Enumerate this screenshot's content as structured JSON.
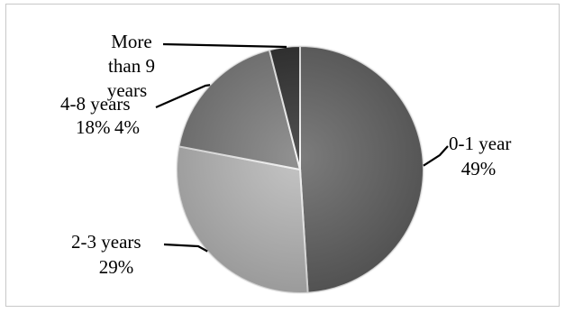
{
  "chart_data": {
    "type": "pie",
    "title": "",
    "slices": [
      {
        "label": "0-1 year",
        "value_text": "49%",
        "value": 49,
        "color": "#5f5f5f"
      },
      {
        "label": "2-3 years",
        "value_text": "29%",
        "value": 29,
        "color": "#b8b8b8"
      },
      {
        "label": "4-8 years",
        "value_text": "18%",
        "value": 18,
        "color": "#7a7a7a"
      },
      {
        "label": "More than 9 years",
        "value_text": "4%",
        "value": 4,
        "color": "#2b2b2b"
      }
    ],
    "legend": "none",
    "data_labels": "outside-with-leader-lines"
  }
}
